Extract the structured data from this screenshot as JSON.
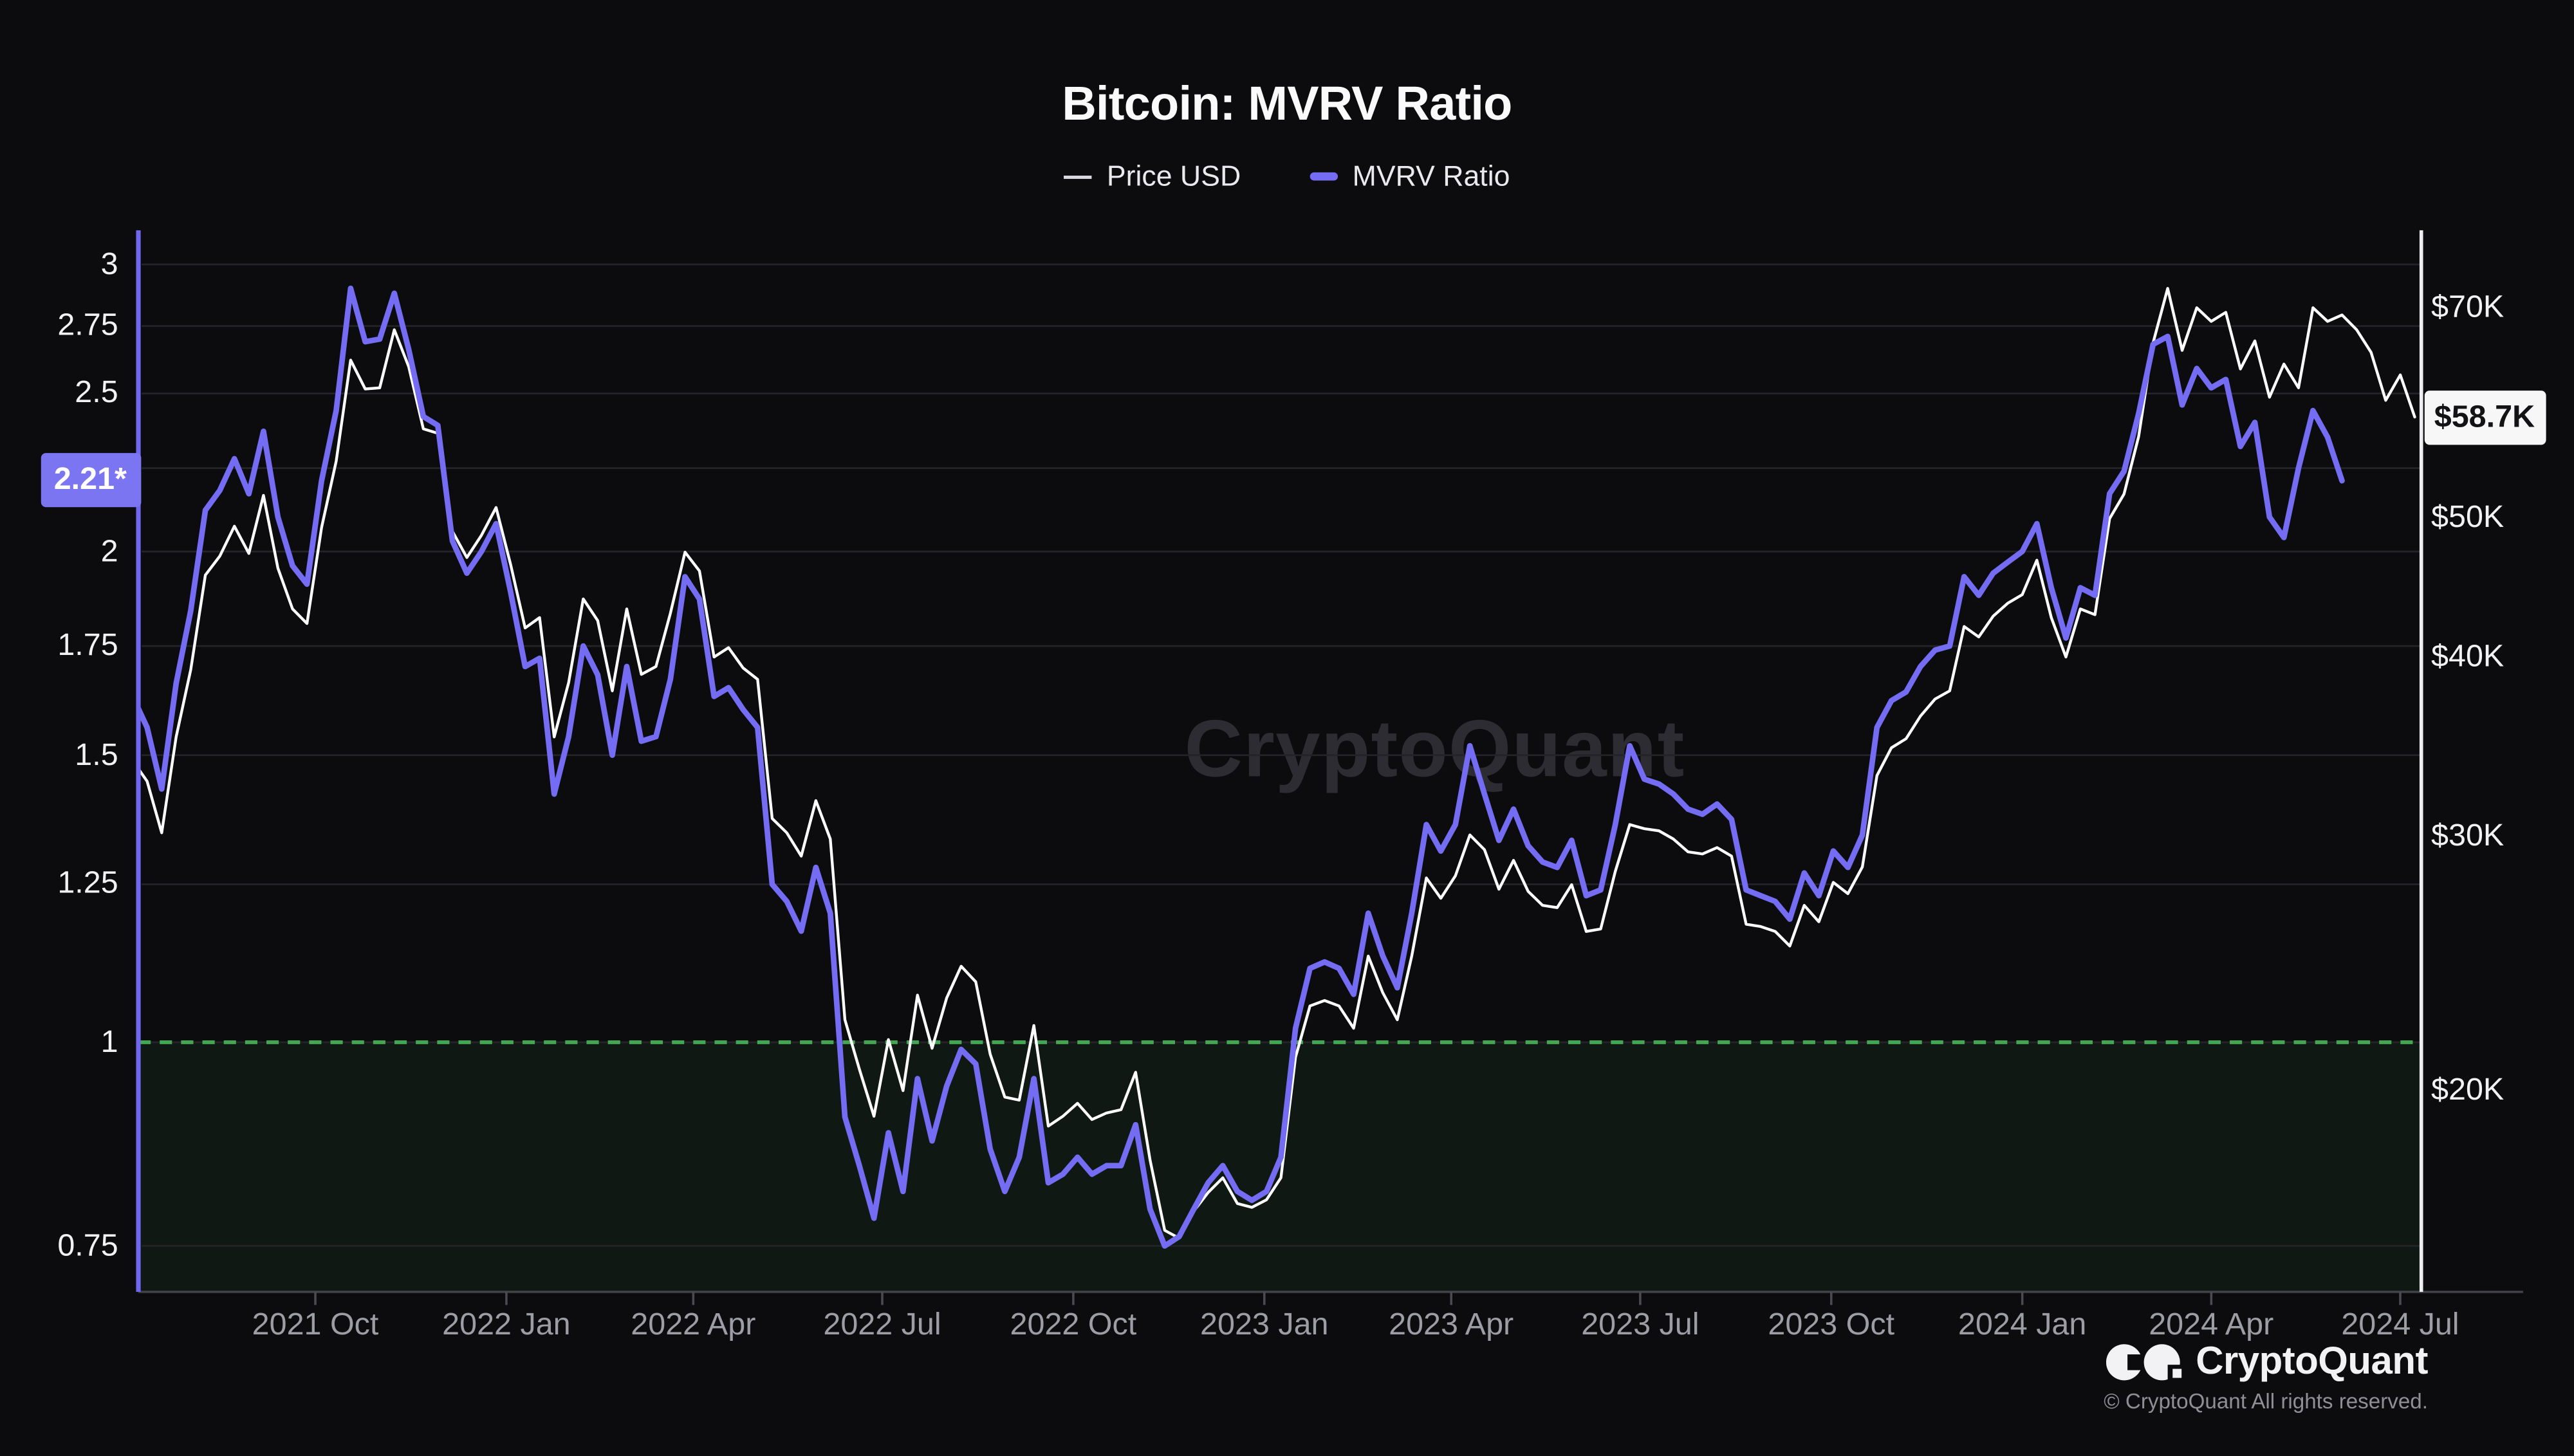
{
  "header": {
    "title": "Bitcoin: MVRV Ratio"
  },
  "legend": {
    "items": [
      {
        "label": "Price USD",
        "color": "#dadade",
        "style": "thin-line"
      },
      {
        "label": "MVRV Ratio",
        "color": "#746cf2",
        "style": "thick-line"
      }
    ]
  },
  "watermark": "CryptoQuant",
  "footer": {
    "logo_icon": "cryptoquant-cq-mark",
    "brand": "CryptoQuant",
    "copyright": "© CryptoQuant All rights reserved."
  },
  "colors": {
    "background": "#0c0c0e",
    "price_line": "#ffffff",
    "mvrv_line": "#746cf2",
    "left_axis_line": "#6f67f0",
    "right_axis_line": "#eceef2",
    "gridline": "#232328",
    "bottom_axis_line": "#42424a",
    "x_label": "#9d9da6",
    "y_label": "#f2f2f5",
    "threshold_green": "#43a653",
    "green_area_fill": "rgba(52,168,83,0.08)",
    "left_badge_bg": "#7c75f2",
    "right_badge_bg": "#f7f7f8"
  },
  "axes": {
    "left": {
      "scale": "log",
      "gridline_values": [
        3,
        2.75,
        2.5,
        2.25,
        2,
        1.75,
        1.5,
        1.25,
        1,
        0.75
      ],
      "labels": [
        {
          "text": "3",
          "value": 3
        },
        {
          "text": "2.75",
          "value": 2.75
        },
        {
          "text": "2.5",
          "value": 2.5
        },
        {
          "text": "2",
          "value": 2
        },
        {
          "text": "1.75",
          "value": 1.75
        },
        {
          "text": "1.5",
          "value": 1.5
        },
        {
          "text": "1.25",
          "value": 1.25
        },
        {
          "text": "1",
          "value": 1
        },
        {
          "text": "0.75",
          "value": 0.75
        }
      ],
      "current_badge": {
        "text": "2.21*",
        "value": 2.21
      }
    },
    "right": {
      "scale": "log",
      "unit": "USD",
      "labels": [
        {
          "text": "$70K",
          "value": 70
        },
        {
          "text": "$50K",
          "value": 50
        },
        {
          "text": "$40K",
          "value": 40
        },
        {
          "text": "$30K",
          "value": 30
        },
        {
          "text": "$20K",
          "value": 20
        }
      ],
      "current_badge": {
        "text": "$58.7K",
        "value": 58.7
      }
    },
    "x": {
      "ticks": [
        {
          "label": "2021 Oct",
          "date": "2021-10-01"
        },
        {
          "label": "2022 Jan",
          "date": "2022-01-01"
        },
        {
          "label": "2022 Apr",
          "date": "2022-04-01"
        },
        {
          "label": "2022 Jul",
          "date": "2022-07-01"
        },
        {
          "label": "2022 Oct",
          "date": "2022-10-01"
        },
        {
          "label": "2023 Jan",
          "date": "2023-01-01"
        },
        {
          "label": "2023 Apr",
          "date": "2023-04-01"
        },
        {
          "label": "2023 Jul",
          "date": "2023-07-01"
        },
        {
          "label": "2023 Oct",
          "date": "2023-10-01"
        },
        {
          "label": "2024 Jan",
          "date": "2024-01-01"
        },
        {
          "label": "2024 Apr",
          "date": "2024-04-01"
        },
        {
          "label": "2024 Jul",
          "date": "2024-07-01"
        }
      ]
    }
  },
  "chart_data": {
    "type": "line",
    "title": "Bitcoin: MVRV Ratio",
    "legend_position": "top-center",
    "grid": "horizontal-only",
    "left_axis_label": "MVRV Ratio (log scale)",
    "right_axis_label": "Price USD (log scale)",
    "left_axis_range": [
      0.7,
      3.16
    ],
    "right_axis_range_thousands_usd": [
      14.5,
      79
    ],
    "threshold_line": {
      "value": 1,
      "axis": "left",
      "style": "dashed",
      "color": "#43a653",
      "area_below_filled": true
    },
    "x": [
      "2021-07-05",
      "2021-07-12",
      "2021-07-19",
      "2021-07-26",
      "2021-08-02",
      "2021-08-09",
      "2021-08-16",
      "2021-08-23",
      "2021-08-30",
      "2021-09-06",
      "2021-09-13",
      "2021-09-20",
      "2021-09-27",
      "2021-10-04",
      "2021-10-11",
      "2021-10-18",
      "2021-10-25",
      "2021-11-01",
      "2021-11-08",
      "2021-11-15",
      "2021-11-22",
      "2021-11-29",
      "2021-12-06",
      "2021-12-13",
      "2021-12-20",
      "2021-12-27",
      "2022-01-03",
      "2022-01-10",
      "2022-01-17",
      "2022-01-24",
      "2022-01-31",
      "2022-02-07",
      "2022-02-14",
      "2022-02-21",
      "2022-02-28",
      "2022-03-07",
      "2022-03-14",
      "2022-03-21",
      "2022-03-28",
      "2022-04-04",
      "2022-04-11",
      "2022-04-18",
      "2022-04-25",
      "2022-05-02",
      "2022-05-09",
      "2022-05-16",
      "2022-05-23",
      "2022-05-30",
      "2022-06-06",
      "2022-06-13",
      "2022-06-20",
      "2022-06-27",
      "2022-07-04",
      "2022-07-11",
      "2022-07-18",
      "2022-07-25",
      "2022-08-01",
      "2022-08-08",
      "2022-08-15",
      "2022-08-22",
      "2022-08-29",
      "2022-09-05",
      "2022-09-12",
      "2022-09-19",
      "2022-09-26",
      "2022-10-03",
      "2022-10-10",
      "2022-10-17",
      "2022-10-24",
      "2022-10-31",
      "2022-11-07",
      "2022-11-14",
      "2022-11-21",
      "2022-11-28",
      "2022-12-05",
      "2022-12-12",
      "2022-12-19",
      "2022-12-26",
      "2023-01-02",
      "2023-01-09",
      "2023-01-16",
      "2023-01-23",
      "2023-01-30",
      "2023-02-06",
      "2023-02-13",
      "2023-02-20",
      "2023-02-27",
      "2023-03-06",
      "2023-03-13",
      "2023-03-20",
      "2023-03-27",
      "2023-04-03",
      "2023-04-10",
      "2023-04-17",
      "2023-04-24",
      "2023-05-01",
      "2023-05-08",
      "2023-05-15",
      "2023-05-22",
      "2023-05-29",
      "2023-06-05",
      "2023-06-12",
      "2023-06-19",
      "2023-06-26",
      "2023-07-03",
      "2023-07-10",
      "2023-07-17",
      "2023-07-24",
      "2023-07-31",
      "2023-08-07",
      "2023-08-14",
      "2023-08-21",
      "2023-08-28",
      "2023-09-04",
      "2023-09-11",
      "2023-09-18",
      "2023-09-25",
      "2023-10-02",
      "2023-10-09",
      "2023-10-16",
      "2023-10-23",
      "2023-10-30",
      "2023-11-06",
      "2023-11-13",
      "2023-11-20",
      "2023-11-27",
      "2023-12-04",
      "2023-12-11",
      "2023-12-18",
      "2023-12-25",
      "2024-01-01",
      "2024-01-08",
      "2024-01-15",
      "2024-01-22",
      "2024-01-29",
      "2024-02-05",
      "2024-02-12",
      "2024-02-19",
      "2024-02-26",
      "2024-03-04",
      "2024-03-11",
      "2024-03-18",
      "2024-03-25",
      "2024-04-01",
      "2024-04-08",
      "2024-04-15",
      "2024-04-22",
      "2024-04-29",
      "2024-05-06",
      "2024-05-13",
      "2024-05-20",
      "2024-05-27",
      "2024-06-03",
      "2024-06-10",
      "2024-06-17",
      "2024-06-24",
      "2024-07-01",
      "2024-07-08"
    ],
    "series": [
      {
        "name": "Price USD",
        "unit": "thousand USD",
        "color": "#ffffff",
        "values": [
          33.9,
          32.8,
          30.2,
          35.2,
          39.2,
          45.6,
          47.0,
          49.3,
          47.2,
          51.8,
          46.1,
          43.2,
          42.2,
          49.2,
          54.7,
          64.3,
          61.4,
          61.5,
          67.5,
          63.6,
          57.6,
          57.2,
          48.9,
          46.9,
          48.6,
          50.8,
          46.4,
          41.9,
          42.6,
          35.2,
          38.4,
          43.9,
          42.4,
          37.9,
          43.2,
          38.9,
          39.4,
          42.9,
          47.3,
          45.9,
          40.0,
          40.6,
          39.3,
          38.6,
          30.9,
          30.2,
          29.1,
          31.8,
          29.9,
          22.4,
          20.7,
          19.2,
          21.7,
          20.0,
          23.3,
          21.4,
          23.2,
          24.4,
          23.8,
          21.2,
          19.8,
          19.7,
          22.2,
          18.9,
          19.2,
          19.6,
          19.1,
          19.3,
          19.4,
          20.6,
          17.9,
          16.0,
          15.8,
          16.5,
          17.0,
          17.4,
          16.7,
          16.6,
          16.8,
          17.4,
          21.1,
          22.9,
          23.1,
          22.9,
          22.1,
          24.8,
          23.4,
          22.4,
          24.8,
          28.1,
          27.2,
          28.2,
          30.1,
          29.4,
          27.6,
          28.9,
          27.5,
          26.9,
          26.8,
          27.8,
          25.8,
          25.9,
          28.4,
          30.6,
          30.4,
          30.3,
          29.9,
          29.3,
          29.2,
          29.5,
          29.1,
          26.1,
          26.0,
          25.8,
          25.2,
          26.9,
          26.2,
          27.9,
          27.4,
          28.6,
          33.1,
          34.6,
          35.1,
          36.4,
          37.4,
          37.9,
          42.0,
          41.3,
          42.7,
          43.6,
          44.2,
          46.7,
          42.6,
          40.0,
          43.2,
          42.8,
          49.9,
          51.9,
          56.9,
          66.1,
          72.1,
          65.3,
          69.9,
          68.4,
          69.4,
          63.4,
          66.3,
          60.6,
          63.9,
          61.5,
          69.9,
          68.4,
          69.1,
          67.5,
          65.1,
          60.3,
          62.8,
          58.7
        ]
      },
      {
        "name": "MVRV Ratio",
        "unit": "ratio",
        "color": "#746cf2",
        "values": [
          1.63,
          1.56,
          1.43,
          1.66,
          1.84,
          2.12,
          2.18,
          2.28,
          2.17,
          2.37,
          2.1,
          1.96,
          1.91,
          2.21,
          2.44,
          2.9,
          2.69,
          2.7,
          2.88,
          2.66,
          2.42,
          2.39,
          2.03,
          1.94,
          2.0,
          2.08,
          1.89,
          1.7,
          1.72,
          1.42,
          1.54,
          1.75,
          1.68,
          1.5,
          1.7,
          1.53,
          1.54,
          1.67,
          1.93,
          1.87,
          1.63,
          1.65,
          1.6,
          1.56,
          1.25,
          1.22,
          1.17,
          1.28,
          1.2,
          0.9,
          0.84,
          0.78,
          0.88,
          0.81,
          0.95,
          0.87,
          0.94,
          0.99,
          0.97,
          0.86,
          0.81,
          0.85,
          0.95,
          0.82,
          0.83,
          0.85,
          0.83,
          0.84,
          0.84,
          0.89,
          0.79,
          0.75,
          0.76,
          0.79,
          0.82,
          0.84,
          0.81,
          0.8,
          0.81,
          0.85,
          1.02,
          1.11,
          1.12,
          1.11,
          1.07,
          1.2,
          1.13,
          1.08,
          1.2,
          1.36,
          1.31,
          1.36,
          1.52,
          1.42,
          1.33,
          1.39,
          1.32,
          1.29,
          1.28,
          1.33,
          1.23,
          1.24,
          1.36,
          1.52,
          1.45,
          1.44,
          1.42,
          1.39,
          1.38,
          1.4,
          1.37,
          1.24,
          1.23,
          1.22,
          1.19,
          1.27,
          1.23,
          1.31,
          1.28,
          1.34,
          1.56,
          1.62,
          1.64,
          1.7,
          1.74,
          1.75,
          1.93,
          1.88,
          1.94,
          1.97,
          2.0,
          2.08,
          1.9,
          1.77,
          1.9,
          1.88,
          2.17,
          2.24,
          2.43,
          2.68,
          2.71,
          2.46,
          2.59,
          2.52,
          2.55,
          2.32,
          2.4,
          2.1,
          2.04,
          2.25,
          2.44,
          2.35,
          2.21,
          null,
          null,
          null,
          null,
          null
        ]
      }
    ]
  }
}
